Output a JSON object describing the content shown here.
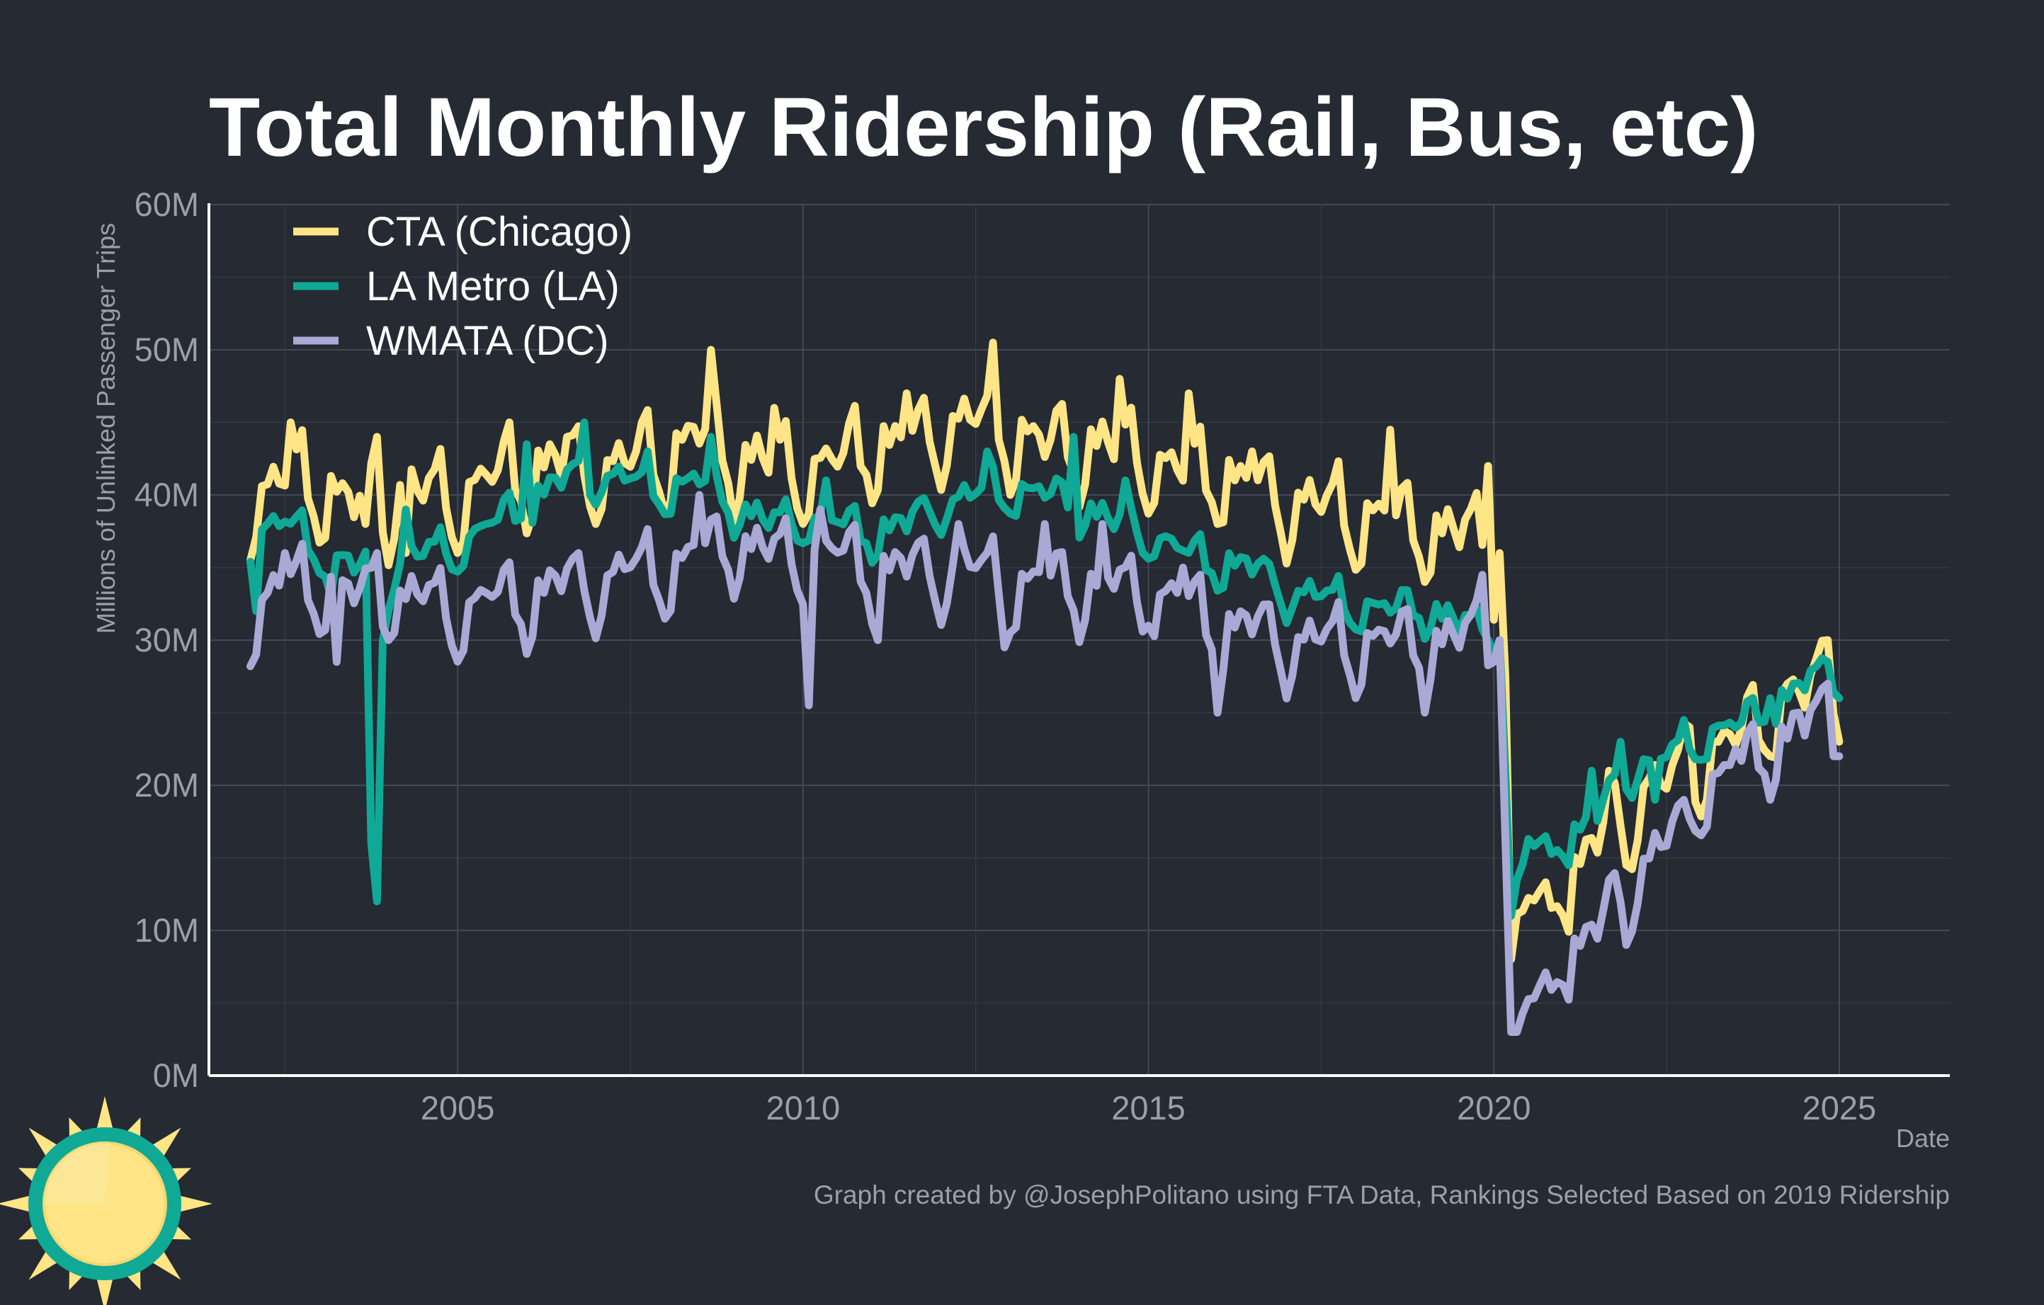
{
  "chart_data": {
    "type": "line",
    "title": "Total Monthly Ridership (Rail, Bus, etc)",
    "xlabel": "Date",
    "ylabel": "Millions of Unlinked Passenger Trips",
    "xlim": [
      2001.4,
      2026.6
    ],
    "ylim": [
      0,
      60
    ],
    "x_ticks": [
      2005,
      2010,
      2015,
      2020,
      2025
    ],
    "y_ticks": [
      0,
      10,
      20,
      30,
      40,
      50,
      60
    ],
    "y_tick_labels": [
      "0M",
      "10M",
      "20M",
      "30M",
      "40M",
      "50M",
      "60M"
    ],
    "x_start": 2002.0,
    "x_step": 0.0833333,
    "grid": true,
    "legend": "top-left",
    "series": [
      {
        "name": "CTA (Chicago)",
        "color": "#ffe585",
        "anchors": [
          [
            2002.0,
            39
          ],
          [
            2002.3,
            40
          ],
          [
            2002.6,
            41
          ],
          [
            2003.0,
            40
          ],
          [
            2003.5,
            39
          ],
          [
            2004.0,
            39
          ],
          [
            2004.5,
            40
          ],
          [
            2005.0,
            39
          ],
          [
            2005.5,
            41
          ],
          [
            2006.0,
            41
          ],
          [
            2006.5,
            42
          ],
          [
            2007.0,
            41
          ],
          [
            2007.5,
            42
          ],
          [
            2008.0,
            42
          ],
          [
            2008.5,
            44
          ],
          [
            2009.0,
            42
          ],
          [
            2009.5,
            42
          ],
          [
            2010.0,
            41
          ],
          [
            2010.5,
            42
          ],
          [
            2011.0,
            43
          ],
          [
            2011.5,
            43
          ],
          [
            2012.0,
            44
          ],
          [
            2012.5,
            45
          ],
          [
            2013.0,
            44
          ],
          [
            2013.5,
            43
          ],
          [
            2014.0,
            43
          ],
          [
            2014.5,
            43
          ],
          [
            2015.0,
            42
          ],
          [
            2015.5,
            41
          ],
          [
            2016.0,
            41
          ],
          [
            2016.5,
            40
          ],
          [
            2017.0,
            39
          ],
          [
            2017.5,
            39
          ],
          [
            2018.0,
            38
          ],
          [
            2018.5,
            38
          ],
          [
            2019.0,
            37
          ],
          [
            2019.5,
            37
          ],
          [
            2019.92,
            36.5
          ],
          [
            2020.08,
            33
          ],
          [
            2020.25,
            10
          ],
          [
            2020.5,
            12
          ],
          [
            2021.0,
            12
          ],
          [
            2021.5,
            16
          ],
          [
            2022.0,
            18
          ],
          [
            2022.5,
            20
          ],
          [
            2023.0,
            21
          ],
          [
            2023.5,
            23
          ],
          [
            2024.0,
            24
          ],
          [
            2024.5,
            26
          ],
          [
            2024.92,
            27
          ]
        ],
        "amplitude": 3.5,
        "spikes": [
          [
            2002.58,
            45
          ],
          [
            2003.67,
            38
          ],
          [
            2003.83,
            44
          ],
          [
            2004.25,
            36
          ],
          [
            2005.0,
            36
          ],
          [
            2005.75,
            45
          ],
          [
            2006.58,
            44
          ],
          [
            2007.0,
            38
          ],
          [
            2007.67,
            45
          ],
          [
            2008.67,
            50
          ],
          [
            2009.58,
            46
          ],
          [
            2010.0,
            38
          ],
          [
            2011.5,
            47
          ],
          [
            2012.75,
            50.5
          ],
          [
            2013.0,
            40
          ],
          [
            2014.58,
            48
          ],
          [
            2015.58,
            47
          ],
          [
            2016.0,
            38
          ],
          [
            2016.5,
            43
          ],
          [
            2018.5,
            44.5
          ],
          [
            2019.0,
            34
          ],
          [
            2019.92,
            42
          ],
          [
            2020.08,
            36
          ],
          [
            2020.17,
            27.5
          ],
          [
            2020.25,
            8
          ],
          [
            2021.67,
            21
          ],
          [
            2021.92,
            14.5
          ],
          [
            2022.25,
            20.5
          ],
          [
            2022.83,
            24
          ],
          [
            2023.08,
            19
          ],
          [
            2024.0,
            22
          ],
          [
            2024.25,
            27
          ],
          [
            2024.83,
            30
          ]
        ],
        "last_value": 23
      },
      {
        "name": "LA Metro (LA)",
        "color": "#0fa996",
        "anchors": [
          [
            2002.0,
            37
          ],
          [
            2002.5,
            38
          ],
          [
            2003.0,
            36
          ],
          [
            2003.5,
            35
          ],
          [
            2004.0,
            34
          ],
          [
            2004.5,
            36
          ],
          [
            2005.0,
            36
          ],
          [
            2005.5,
            38
          ],
          [
            2006.0,
            39
          ],
          [
            2006.5,
            41
          ],
          [
            2007.0,
            41
          ],
          [
            2007.5,
            41
          ],
          [
            2008.0,
            40
          ],
          [
            2008.5,
            41
          ],
          [
            2009.0,
            39
          ],
          [
            2009.5,
            38
          ],
          [
            2010.0,
            38
          ],
          [
            2010.5,
            38
          ],
          [
            2011.0,
            37
          ],
          [
            2011.5,
            38
          ],
          [
            2012.0,
            39
          ],
          [
            2012.5,
            40
          ],
          [
            2013.0,
            40
          ],
          [
            2013.5,
            40
          ],
          [
            2014.0,
            39
          ],
          [
            2014.5,
            38
          ],
          [
            2015.0,
            37
          ],
          [
            2015.5,
            36
          ],
          [
            2016.0,
            35
          ],
          [
            2016.5,
            35
          ],
          [
            2017.0,
            33
          ],
          [
            2017.5,
            33
          ],
          [
            2018.0,
            32
          ],
          [
            2018.5,
            32
          ],
          [
            2019.0,
            32
          ],
          [
            2019.5,
            31
          ],
          [
            2019.92,
            30.5
          ],
          [
            2020.08,
            30.5
          ],
          [
            2020.25,
            12
          ],
          [
            2020.5,
            16
          ],
          [
            2021.0,
            15.5
          ],
          [
            2021.5,
            18
          ],
          [
            2022.0,
            21
          ],
          [
            2022.5,
            22
          ],
          [
            2023.0,
            23
          ],
          [
            2023.5,
            24
          ],
          [
            2024.0,
            25
          ],
          [
            2024.5,
            27
          ],
          [
            2024.92,
            27.5
          ]
        ],
        "amplitude": 1.6,
        "spikes": [
          [
            2002.08,
            32
          ],
          [
            2002.67,
            38.5
          ],
          [
            2003.17,
            33
          ],
          [
            2003.75,
            16
          ],
          [
            2003.83,
            12
          ],
          [
            2003.92,
            30
          ],
          [
            2004.25,
            39
          ],
          [
            2006.0,
            43.5
          ],
          [
            2006.83,
            45
          ],
          [
            2007.75,
            43
          ],
          [
            2008.67,
            44
          ],
          [
            2010.33,
            41
          ],
          [
            2012.67,
            43
          ],
          [
            2013.92,
            44
          ],
          [
            2014.67,
            41
          ],
          [
            2019.92,
            30
          ],
          [
            2020.08,
            30
          ],
          [
            2020.25,
            11
          ],
          [
            2021.42,
            21
          ],
          [
            2021.83,
            23
          ],
          [
            2022.33,
            19
          ],
          [
            2022.75,
            24.5
          ],
          [
            2024.0,
            26
          ],
          [
            2024.33,
            27
          ],
          [
            2024.83,
            28.5
          ]
        ],
        "last_value": 26
      },
      {
        "name": "WMATA (DC)",
        "color": "#a9a9d6",
        "anchors": [
          [
            2002.0,
            31
          ],
          [
            2002.5,
            34
          ],
          [
            2003.0,
            33
          ],
          [
            2003.5,
            33
          ],
          [
            2004.0,
            32
          ],
          [
            2004.5,
            33
          ],
          [
            2005.0,
            31
          ],
          [
            2005.5,
            33
          ],
          [
            2006.0,
            32
          ],
          [
            2006.5,
            34
          ],
          [
            2007.0,
            33
          ],
          [
            2007.5,
            35
          ],
          [
            2008.0,
            34
          ],
          [
            2008.5,
            36
          ],
          [
            2009.0,
            36
          ],
          [
            2009.5,
            36
          ],
          [
            2010.0,
            35
          ],
          [
            2010.5,
            36
          ],
          [
            2011.0,
            34
          ],
          [
            2011.5,
            35
          ],
          [
            2012.0,
            34
          ],
          [
            2012.5,
            35
          ],
          [
            2013.0,
            33
          ],
          [
            2013.5,
            34
          ],
          [
            2014.0,
            33
          ],
          [
            2014.5,
            34
          ],
          [
            2015.0,
            32
          ],
          [
            2015.5,
            33
          ],
          [
            2016.0,
            30
          ],
          [
            2016.5,
            31
          ],
          [
            2017.0,
            29
          ],
          [
            2017.5,
            30
          ],
          [
            2018.0,
            29
          ],
          [
            2018.5,
            30
          ],
          [
            2019.0,
            29
          ],
          [
            2019.5,
            30
          ],
          [
            2019.92,
            30
          ],
          [
            2020.08,
            30
          ],
          [
            2020.25,
            3
          ],
          [
            2020.5,
            5
          ],
          [
            2021.0,
            7
          ],
          [
            2021.5,
            10
          ],
          [
            2022.0,
            13
          ],
          [
            2022.5,
            16
          ],
          [
            2023.0,
            19
          ],
          [
            2023.5,
            21
          ],
          [
            2024.0,
            22
          ],
          [
            2024.5,
            24
          ],
          [
            2024.92,
            24
          ]
        ],
        "amplitude": 2.8,
        "spikes": [
          [
            2002.08,
            29
          ],
          [
            2002.5,
            36
          ],
          [
            2003.25,
            28.5
          ],
          [
            2003.83,
            36
          ],
          [
            2004.0,
            30
          ],
          [
            2006.75,
            36
          ],
          [
            2008.5,
            40
          ],
          [
            2010.08,
            25.5
          ],
          [
            2010.25,
            39
          ],
          [
            2011.08,
            30
          ],
          [
            2012.25,
            38
          ],
          [
            2012.92,
            29.5
          ],
          [
            2013.5,
            38
          ],
          [
            2014.33,
            38
          ],
          [
            2015.0,
            31
          ],
          [
            2015.5,
            35
          ],
          [
            2016.0,
            25
          ],
          [
            2018.0,
            26
          ],
          [
            2019.0,
            25
          ],
          [
            2019.83,
            34.5
          ],
          [
            2020.0,
            28.5
          ],
          [
            2020.08,
            30
          ],
          [
            2020.25,
            3
          ],
          [
            2020.33,
            3
          ],
          [
            2021.67,
            13.5
          ],
          [
            2021.92,
            9
          ],
          [
            2022.75,
            19
          ],
          [
            2023.5,
            22.5
          ],
          [
            2024.0,
            19
          ],
          [
            2024.42,
            25
          ],
          [
            2024.83,
            27
          ],
          [
            2024.92,
            22
          ]
        ],
        "last_value": 22
      }
    ]
  },
  "footer": {
    "caption": "Graph created by @JosephPolitano using FTA Data, Rankings Selected Based on 2019 Ridership",
    "logo": "sun-logo-icon"
  }
}
